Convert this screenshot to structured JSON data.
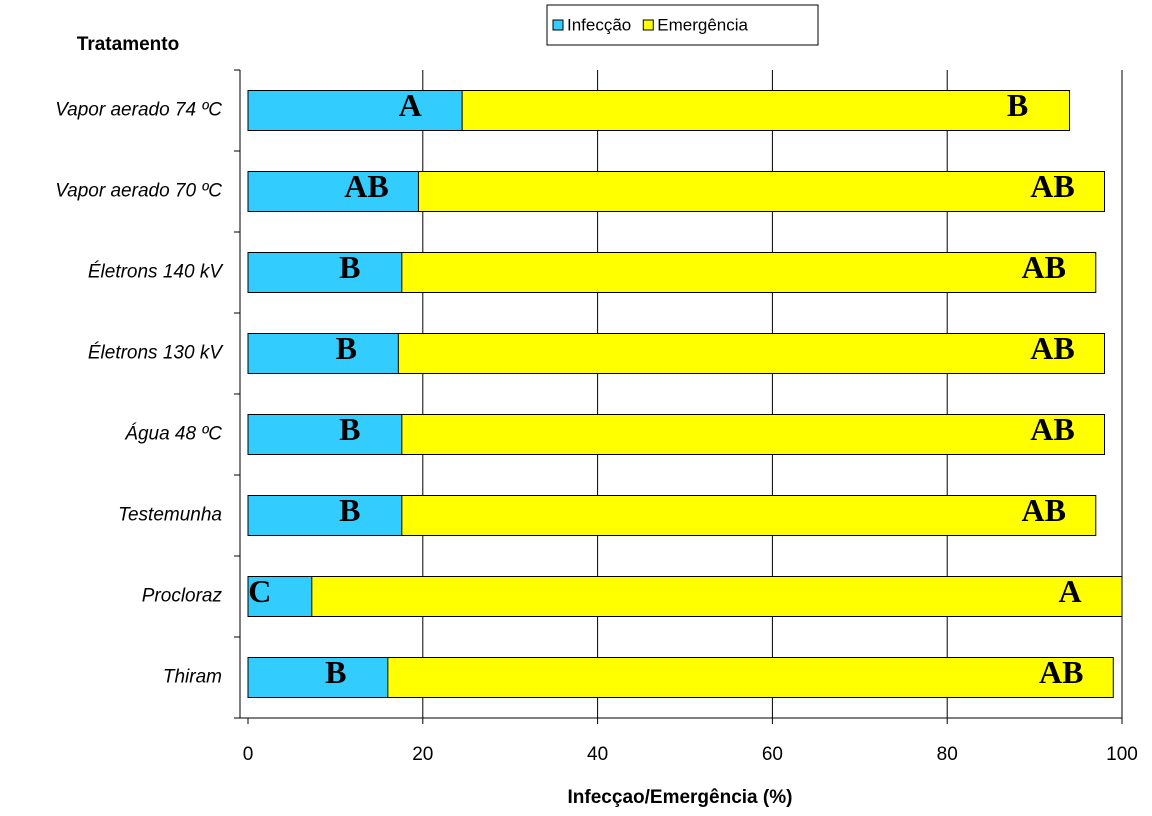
{
  "chart_data": {
    "type": "bar",
    "orientation": "horizontal",
    "overlap": true,
    "title": "Tratamento",
    "x_label": "Infecçao/Emergência (%)",
    "categories": [
      "Vapor aerado 74 ºC",
      "Vapor aerado 70 ºC",
      "Életrons 140 kV",
      "Életrons 130 kV",
      "Água 48 ºC",
      "Testemunha",
      "Procloraz",
      "Thiram"
    ],
    "series": [
      {
        "name": "Emergência",
        "color": "#ffff00",
        "values": [
          94,
          98,
          97,
          98,
          98,
          97,
          100,
          99
        ],
        "annotations": [
          "B",
          "AB",
          "AB",
          "AB",
          "AB",
          "AB",
          "A",
          "AB"
        ]
      },
      {
        "name": "Infecção",
        "color": "#33ccff",
        "values": [
          24.5,
          19.5,
          17.6,
          17.2,
          17.6,
          17.6,
          7.3,
          16
        ],
        "annotations": [
          "A",
          "AB",
          "B",
          "B",
          "B",
          "B",
          "C",
          "B"
        ]
      }
    ],
    "legend_order": [
      1,
      0
    ],
    "xlim": [
      0,
      100
    ],
    "xticks": [
      0,
      20,
      40,
      60,
      80,
      100
    ],
    "grid": true
  }
}
